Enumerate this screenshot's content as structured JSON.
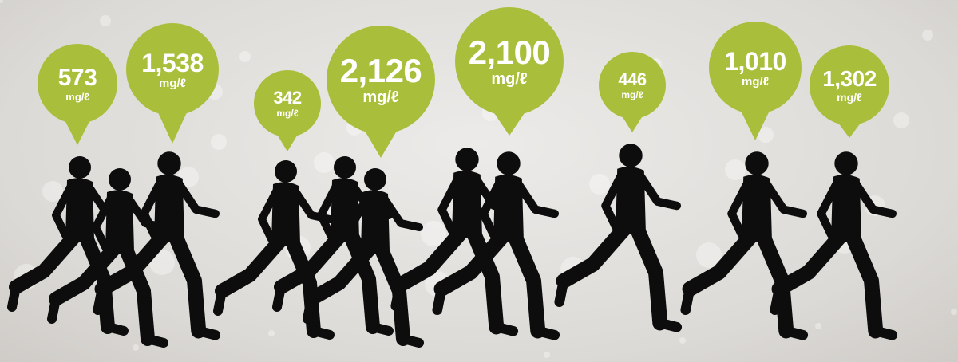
{
  "colors": {
    "bubble": "#a9bf3b",
    "silhouette": "#0d0d0d",
    "background": "#e2e0dd"
  },
  "bubbles": [
    {
      "value": "573",
      "unit": "mg/ℓ"
    },
    {
      "value": "1,538",
      "unit": "mg/ℓ"
    },
    {
      "value": "342",
      "unit": "mg/ℓ"
    },
    {
      "value": "2,126",
      "unit": "mg/ℓ"
    },
    {
      "value": "2,100",
      "unit": "mg/ℓ"
    },
    {
      "value": "446",
      "unit": "mg/ℓ"
    },
    {
      "value": "1,010",
      "unit": "mg/ℓ"
    },
    {
      "value": "1,302",
      "unit": "mg/ℓ"
    }
  ]
}
